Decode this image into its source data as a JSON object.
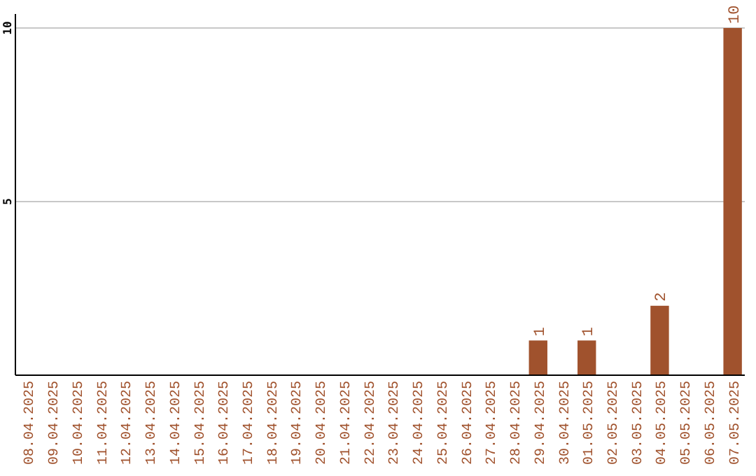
{
  "chart_data": {
    "type": "bar",
    "categories": [
      "08.04.2025",
      "09.04.2025",
      "10.04.2025",
      "11.04.2025",
      "12.04.2025",
      "13.04.2025",
      "14.04.2025",
      "15.04.2025",
      "16.04.2025",
      "17.04.2025",
      "18.04.2025",
      "19.04.2025",
      "20.04.2025",
      "21.04.2025",
      "22.04.2025",
      "23.04.2025",
      "24.04.2025",
      "25.04.2025",
      "26.04.2025",
      "27.04.2025",
      "28.04.2025",
      "29.04.2025",
      "30.04.2025",
      "01.05.2025",
      "02.05.2025",
      "03.05.2025",
      "04.05.2025",
      "05.05.2025",
      "06.05.2025",
      "07.05.2025"
    ],
    "values": [
      0,
      0,
      0,
      0,
      0,
      0,
      0,
      0,
      0,
      0,
      0,
      0,
      0,
      0,
      0,
      0,
      0,
      0,
      0,
      0,
      0,
      1,
      0,
      1,
      0,
      0,
      2,
      0,
      0,
      10
    ],
    "value_labels": [
      null,
      null,
      null,
      null,
      null,
      null,
      null,
      null,
      null,
      null,
      null,
      null,
      null,
      null,
      null,
      null,
      null,
      null,
      null,
      null,
      null,
      "1",
      null,
      "1",
      null,
      null,
      "2",
      null,
      null,
      "10"
    ],
    "color": "#a0522d",
    "ylim": [
      0,
      10
    ],
    "yticks": [
      5,
      10
    ],
    "grid": "y"
  }
}
